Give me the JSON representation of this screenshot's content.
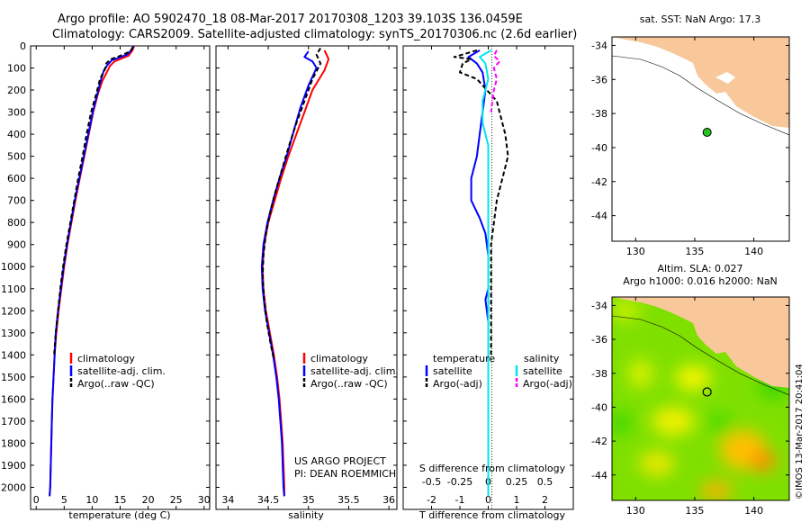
{
  "header": {
    "line1": "Argo profile: AO 5902470_18 08-Mar-2017 20170308_1203 39.103S 136.0459E",
    "line2": "Climatology: CARS2009. Satellite-adjusted climatology: synTS_20170306.nc (2.6d earlier)"
  },
  "colors": {
    "climatology": "#ff0000",
    "satellite": "#0000ff",
    "argo": "#000000",
    "satellite_salinity": "#00e5ee",
    "argo_salinity_adj": "#ff00ff",
    "land": "#f8c89a",
    "ocean_map": "#7fe000"
  },
  "credit": {
    "project": "US ARGO PROJECT",
    "pi": "PI: DEAN ROEMMICH",
    "side_stamp": "©IMOS 13-Mar-2017 20:41:04"
  },
  "chart_data": [
    {
      "type": "line",
      "id": "temperature",
      "xlabel": "temperature (deg C)",
      "xlim": [
        -1,
        31
      ],
      "ylim": [
        2100,
        0
      ],
      "xticks": [
        0,
        5,
        10,
        15,
        20,
        25,
        30
      ],
      "yticks": [
        0,
        100,
        200,
        300,
        400,
        500,
        600,
        700,
        800,
        900,
        1000,
        1100,
        1200,
        1300,
        1400,
        1500,
        1600,
        1700,
        1800,
        1900,
        2000
      ],
      "legend": [
        "climatology",
        "satellite-adj. clim.",
        "Argo(..raw -QC)"
      ],
      "series": [
        {
          "name": "climatology",
          "color": "#ff0000",
          "points": [
            [
              17.5,
              0
            ],
            [
              17.2,
              20
            ],
            [
              16.5,
              45
            ],
            [
              14.0,
              70
            ],
            [
              13.2,
              90
            ],
            [
              12.6,
              120
            ],
            [
              11.8,
              160
            ],
            [
              11.0,
              220
            ],
            [
              10.2,
              300
            ],
            [
              9.4,
              400
            ],
            [
              8.6,
              500
            ],
            [
              7.8,
              600
            ],
            [
              7.0,
              700
            ],
            [
              6.3,
              800
            ],
            [
              5.6,
              900
            ],
            [
              5.0,
              1000
            ],
            [
              4.5,
              1100
            ],
            [
              4.0,
              1200
            ],
            [
              3.6,
              1300
            ],
            [
              3.3,
              1400
            ],
            [
              3.1,
              1500
            ],
            [
              2.9,
              1600
            ],
            [
              2.8,
              1700
            ],
            [
              2.7,
              1800
            ],
            [
              2.6,
              1900
            ],
            [
              2.5,
              2000
            ],
            [
              2.4,
              2040
            ]
          ]
        },
        {
          "name": "satellite-adj. clim.",
          "color": "#0000ff",
          "points": [
            [
              17.4,
              0
            ],
            [
              17.0,
              20
            ],
            [
              16.2,
              40
            ],
            [
              13.5,
              65
            ],
            [
              12.8,
              85
            ],
            [
              12.1,
              110
            ],
            [
              11.6,
              150
            ],
            [
              10.9,
              220
            ],
            [
              10.1,
              300
            ],
            [
              9.3,
              400
            ],
            [
              8.5,
              500
            ],
            [
              7.7,
              600
            ],
            [
              6.9,
              700
            ],
            [
              6.2,
              800
            ],
            [
              5.5,
              900
            ],
            [
              4.9,
              1000
            ],
            [
              4.4,
              1100
            ],
            [
              3.9,
              1200
            ],
            [
              3.5,
              1300
            ],
            [
              3.3,
              1400
            ],
            [
              3.1,
              1500
            ],
            [
              2.9,
              1600
            ],
            [
              2.8,
              1700
            ],
            [
              2.7,
              1800
            ],
            [
              2.6,
              1900
            ],
            [
              2.5,
              2000
            ],
            [
              2.4,
              2040
            ]
          ]
        },
        {
          "name": "Argo(..raw -QC)",
          "color": "#000000",
          "dash": true,
          "points": [
            [
              17.3,
              5
            ],
            [
              16.8,
              25
            ],
            [
              15.0,
              45
            ],
            [
              13.2,
              62
            ],
            [
              12.5,
              80
            ],
            [
              12.3,
              105
            ],
            [
              11.4,
              150
            ],
            [
              10.7,
              220
            ],
            [
              9.8,
              300
            ],
            [
              9.0,
              400
            ],
            [
              8.3,
              500
            ],
            [
              7.5,
              600
            ],
            [
              6.8,
              700
            ],
            [
              6.1,
              800
            ],
            [
              5.4,
              900
            ],
            [
              4.8,
              1000
            ],
            [
              4.3,
              1100
            ],
            [
              3.9,
              1200
            ],
            [
              3.5,
              1300
            ],
            [
              3.2,
              1400
            ]
          ]
        }
      ]
    },
    {
      "type": "line",
      "id": "salinity",
      "xlabel": "salinity",
      "xlim": [
        33.85,
        36.1
      ],
      "ylim": [
        2100,
        0
      ],
      "xticks": [
        34,
        34.5,
        35,
        35.5,
        36
      ],
      "legend": [
        "climatology",
        "satellite-adj. clim.",
        "Argo(..raw -QC)"
      ],
      "series": [
        {
          "name": "climatology",
          "color": "#ff0000",
          "points": [
            [
              35.2,
              20
            ],
            [
              35.25,
              60
            ],
            [
              35.2,
              110
            ],
            [
              35.05,
              200
            ],
            [
              34.95,
              300
            ],
            [
              34.85,
              400
            ],
            [
              34.75,
              500
            ],
            [
              34.66,
              600
            ],
            [
              34.58,
              700
            ],
            [
              34.5,
              800
            ],
            [
              34.45,
              900
            ],
            [
              34.43,
              1000
            ],
            [
              34.44,
              1100
            ],
            [
              34.47,
              1200
            ],
            [
              34.52,
              1300
            ],
            [
              34.57,
              1400
            ],
            [
              34.61,
              1500
            ],
            [
              34.64,
              1600
            ],
            [
              34.66,
              1700
            ],
            [
              34.68,
              1800
            ],
            [
              34.69,
              1900
            ],
            [
              34.7,
              2000
            ],
            [
              34.7,
              2040
            ]
          ]
        },
        {
          "name": "satellite-adj. clim.",
          "color": "#0000ff",
          "points": [
            [
              35.0,
              25
            ],
            [
              34.95,
              50
            ],
            [
              35.05,
              70
            ],
            [
              35.1,
              100
            ],
            [
              35.0,
              180
            ],
            [
              34.9,
              280
            ],
            [
              34.82,
              380
            ],
            [
              34.73,
              500
            ],
            [
              34.64,
              600
            ],
            [
              34.56,
              700
            ],
            [
              34.49,
              800
            ],
            [
              34.44,
              900
            ],
            [
              34.42,
              1000
            ],
            [
              34.43,
              1100
            ],
            [
              34.46,
              1200
            ],
            [
              34.51,
              1300
            ],
            [
              34.56,
              1400
            ],
            [
              34.6,
              1500
            ],
            [
              34.63,
              1600
            ],
            [
              34.65,
              1700
            ],
            [
              34.67,
              1800
            ],
            [
              34.68,
              1900
            ],
            [
              34.69,
              2000
            ],
            [
              34.7,
              2040
            ]
          ]
        },
        {
          "name": "Argo(..raw -QC)",
          "color": "#000000",
          "dash": true,
          "points": [
            [
              35.15,
              10
            ],
            [
              35.1,
              40
            ],
            [
              35.15,
              80
            ],
            [
              35.05,
              150
            ],
            [
              34.95,
              250
            ],
            [
              34.85,
              350
            ],
            [
              34.76,
              450
            ],
            [
              34.67,
              560
            ],
            [
              34.59,
              660
            ],
            [
              34.52,
              760
            ],
            [
              34.47,
              850
            ],
            [
              34.44,
              950
            ],
            [
              34.43,
              1050
            ],
            [
              34.45,
              1150
            ],
            [
              34.48,
              1250
            ],
            [
              34.53,
              1350
            ],
            [
              34.57,
              1420
            ]
          ]
        }
      ]
    },
    {
      "type": "line",
      "id": "difference",
      "xlabel": "T difference from climatology",
      "xlabel2": "S difference from climatology",
      "xlim": [
        -3,
        3
      ],
      "ylim": [
        2100,
        0
      ],
      "xticks": [
        -2,
        -1,
        0,
        1,
        2
      ],
      "x2ticks": [
        "-0.5",
        "-0.25",
        "0",
        "0.25",
        "0.5"
      ],
      "legend_headings": [
        "temperature",
        "salinity"
      ],
      "legend": [
        "satellite",
        "Argo(-adj)",
        "satellite",
        "Argo(-adj)"
      ],
      "series": [
        {
          "name": "satellite",
          "color": "#0000ff",
          "points": [
            [
              -0.3,
              20
            ],
            [
              -0.7,
              50
            ],
            [
              -0.4,
              80
            ],
            [
              -0.2,
              120
            ],
            [
              -0.1,
              200
            ],
            [
              -0.2,
              300
            ],
            [
              -0.3,
              400
            ],
            [
              -0.4,
              500
            ],
            [
              -0.6,
              600
            ],
            [
              -0.6,
              700
            ],
            [
              -0.3,
              780
            ],
            [
              -0.1,
              850
            ],
            [
              0,
              950
            ],
            [
              0,
              1100
            ],
            [
              -0.1,
              1150
            ],
            [
              0,
              1250
            ],
            [
              0,
              1400
            ],
            [
              0,
              1600
            ],
            [
              0,
              1800
            ],
            [
              0,
              2000
            ],
            [
              0,
              2040
            ]
          ]
        },
        {
          "name": "Argo(-adj)",
          "color": "#000000",
          "dash": true,
          "points": [
            [
              -0.4,
              20
            ],
            [
              -1.2,
              50
            ],
            [
              -0.6,
              60
            ],
            [
              -0.9,
              80
            ],
            [
              -1.0,
              120
            ],
            [
              -0.4,
              150
            ],
            [
              0.3,
              250
            ],
            [
              0.4,
              300
            ],
            [
              0.6,
              400
            ],
            [
              0.7,
              500
            ],
            [
              0.5,
              600
            ],
            [
              0.3,
              700
            ],
            [
              0.2,
              800
            ],
            [
              0.1,
              900
            ],
            [
              0.1,
              1000
            ],
            [
              0.1,
              1100
            ],
            [
              0.1,
              1200
            ],
            [
              0.1,
              1300
            ],
            [
              0.1,
              1400
            ]
          ]
        },
        {
          "name": "satellite",
          "color": "#00e5ee",
          "points": [
            [
              0.1,
              20
            ],
            [
              -0.3,
              50
            ],
            [
              -0.1,
              80
            ],
            [
              0.0,
              150
            ],
            [
              -0.2,
              250
            ],
            [
              -0.2,
              350
            ],
            [
              0.0,
              450
            ],
            [
              0.0,
              550
            ],
            [
              0.0,
              700
            ],
            [
              0.0,
              850
            ],
            [
              0.0,
              1000
            ],
            [
              0.0,
              1200
            ],
            [
              0.0,
              1400
            ],
            [
              0.0,
              1600
            ],
            [
              0.0,
              1800
            ],
            [
              0.0,
              2000
            ],
            [
              0.0,
              2040
            ]
          ]
        },
        {
          "name": "Argo(-adj)",
          "color": "#ff00ff",
          "dash": true,
          "points": [
            [
              0.3,
              20
            ],
            [
              0.2,
              45
            ],
            [
              0.4,
              70
            ],
            [
              0.2,
              100
            ],
            [
              0.3,
              150
            ],
            [
              0.2,
              200
            ],
            [
              0.1,
              300
            ]
          ]
        }
      ]
    },
    {
      "type": "scatter",
      "id": "sst_map",
      "title": "sat. SST: NaN Argo: 17.3",
      "xlim": [
        128,
        143
      ],
      "ylim": [
        -45.5,
        -33.5
      ],
      "xticks": [
        130,
        135,
        140
      ],
      "yticks": [
        -34,
        -36,
        -38,
        -40,
        -42,
        -44
      ],
      "float_position": {
        "lon": 136.0459,
        "lat": -39.103
      }
    },
    {
      "type": "heatmap",
      "id": "sla_map",
      "title": "Altim. SLA: 0.027",
      "subtitle": "Argo h1000: 0.016 h2000: NaN",
      "xlim": [
        128,
        143
      ],
      "ylim": [
        -45.5,
        -33.5
      ],
      "xticks": [
        130,
        135,
        140
      ],
      "yticks": [
        -34,
        -36,
        -38,
        -40,
        -42,
        -44
      ],
      "float_position": {
        "lon": 136.0459,
        "lat": -39.103
      }
    }
  ]
}
